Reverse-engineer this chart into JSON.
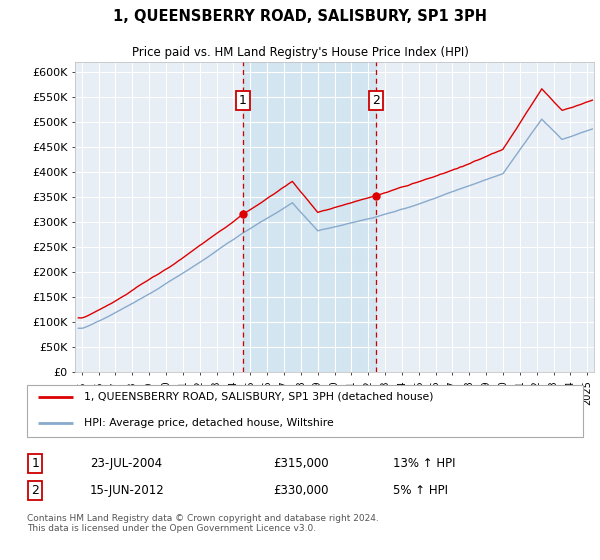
{
  "title": "1, QUEENSBERRY ROAD, SALISBURY, SP1 3PH",
  "subtitle": "Price paid vs. HM Land Registry's House Price Index (HPI)",
  "legend_line1": "1, QUEENSBERRY ROAD, SALISBURY, SP1 3PH (detached house)",
  "legend_line2": "HPI: Average price, detached house, Wiltshire",
  "annotation1_label": "1",
  "annotation1_date": "23-JUL-2004",
  "annotation1_price": "£315,000",
  "annotation1_hpi": "13% ↑ HPI",
  "annotation2_label": "2",
  "annotation2_date": "15-JUN-2012",
  "annotation2_price": "£330,000",
  "annotation2_hpi": "5% ↑ HPI",
  "footnote": "Contains HM Land Registry data © Crown copyright and database right 2024.\nThis data is licensed under the Open Government Licence v3.0.",
  "red_color": "#dd0000",
  "blue_color": "#88aacc",
  "shade_color": "#d0e4f0",
  "annotation_color": "#cc0000",
  "background_plot": "#e8eef5",
  "background_fig": "#ffffff",
  "grid_color": "#ffffff",
  "ylim": [
    0,
    620000
  ],
  "yticks": [
    0,
    50000,
    100000,
    150000,
    200000,
    250000,
    300000,
    350000,
    400000,
    450000,
    500000,
    550000,
    600000
  ],
  "purchase1_year": 2004.55,
  "purchase1_value": 315000,
  "purchase2_year": 2012.46,
  "purchase2_value": 330000,
  "xlim_left": 1994.6,
  "xlim_right": 2025.4
}
